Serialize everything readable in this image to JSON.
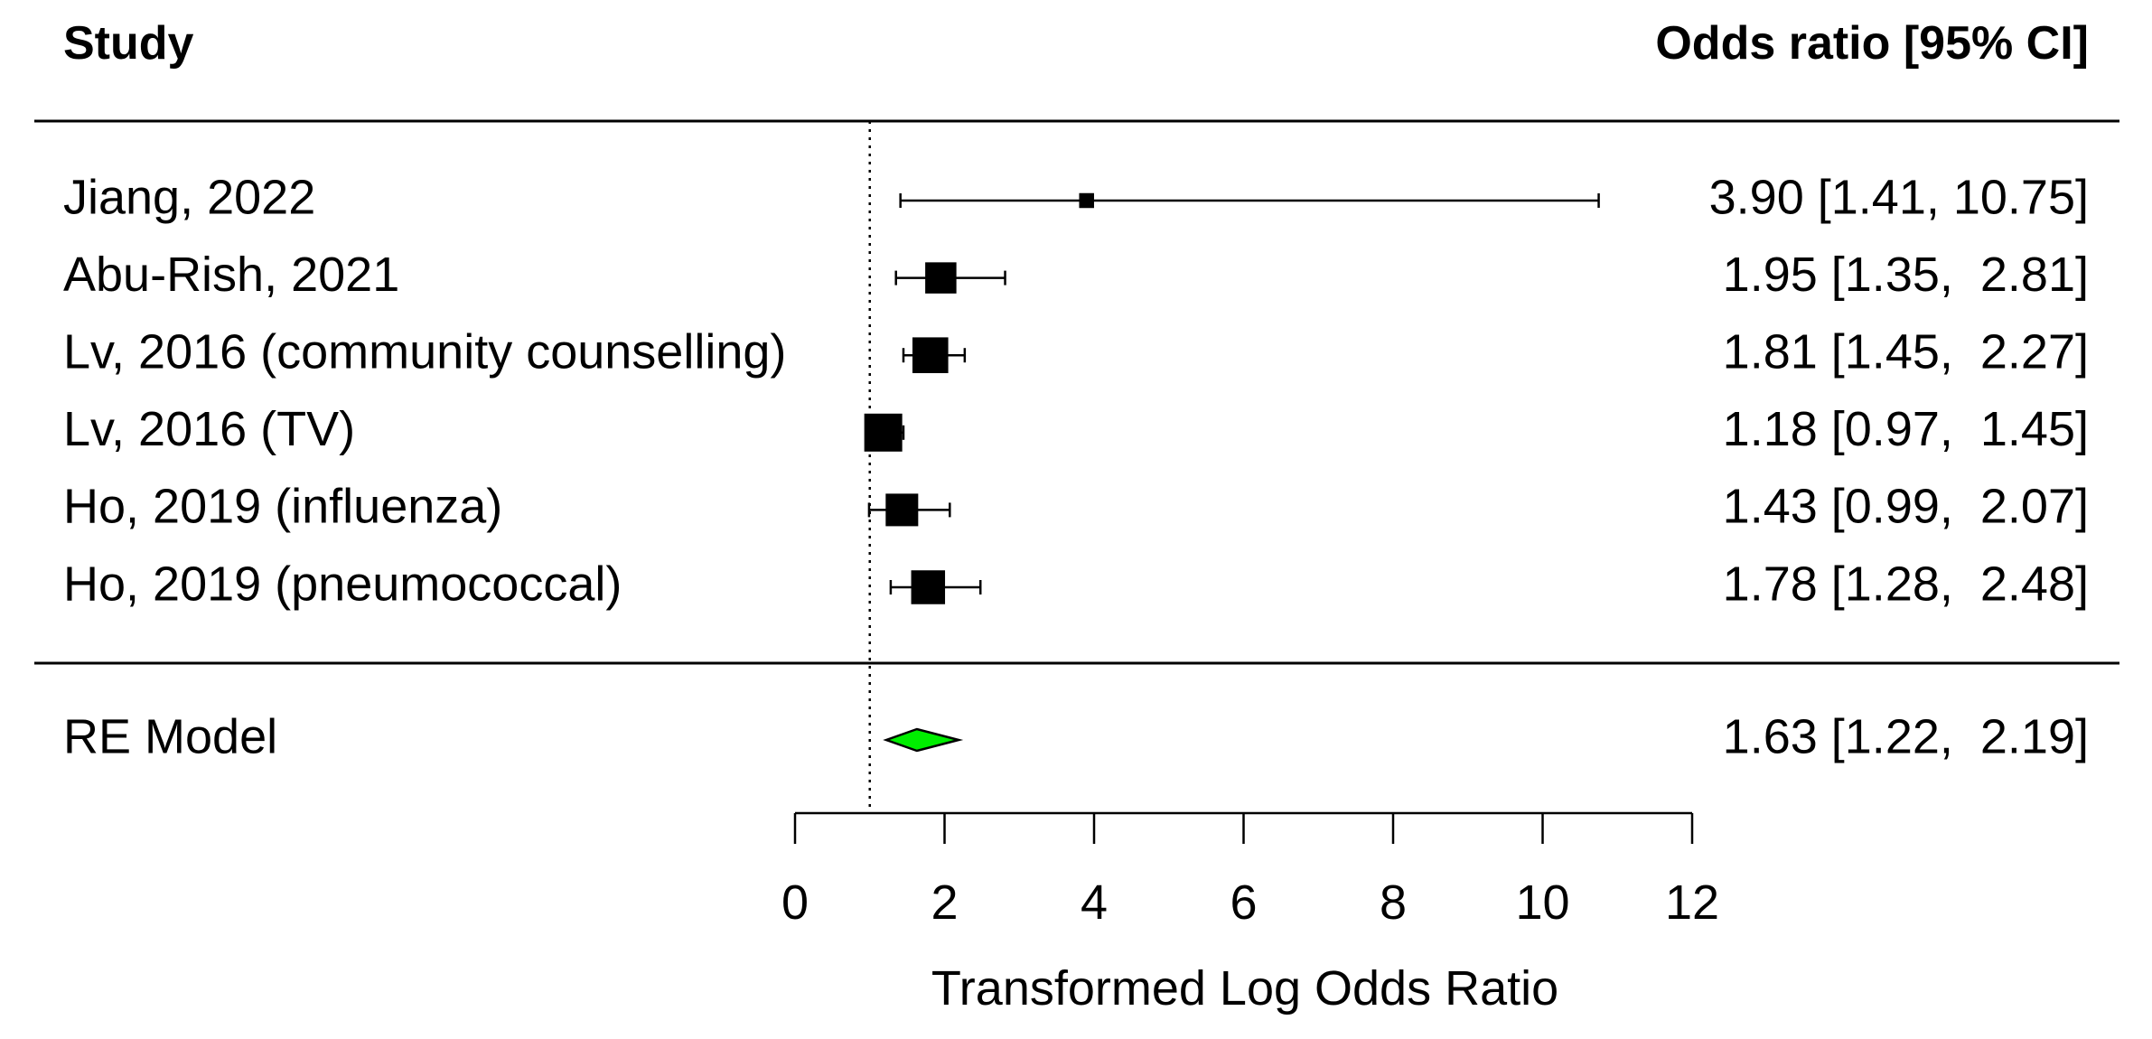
{
  "chart_data": {
    "type": "forest",
    "header_left": "Study",
    "header_right": "Odds ratio [95% CI]",
    "xlabel": "Transformed Log Odds Ratio",
    "xlim": [
      0,
      12
    ],
    "xticks": [
      0,
      2,
      4,
      6,
      8,
      10,
      12
    ],
    "reference_line": 1,
    "studies": [
      {
        "label": "Jiang, 2022",
        "est": 3.9,
        "lo": 1.41,
        "hi": 10.75,
        "ci_text": "3.90 [1.41, 10.75]",
        "weight": 0.15
      },
      {
        "label": "Abu-Rish, 2021",
        "est": 1.95,
        "lo": 1.35,
        "hi": 2.81,
        "ci_text": "1.95 [1.35,  2.81]",
        "weight": 0.75
      },
      {
        "label": "Lv, 2016 (community counselling)",
        "est": 1.81,
        "lo": 1.45,
        "hi": 2.27,
        "ci_text": "1.81 [1.45,  2.27]",
        "weight": 0.92
      },
      {
        "label": "Lv, 2016 (TV)",
        "est": 1.18,
        "lo": 0.97,
        "hi": 1.45,
        "ci_text": "1.18 [0.97,  1.45]",
        "weight": 1.0
      },
      {
        "label": "Ho, 2019 (influenza)",
        "est": 1.43,
        "lo": 0.99,
        "hi": 2.07,
        "ci_text": "1.43 [0.99,  2.07]",
        "weight": 0.8
      },
      {
        "label": "Ho, 2019 (pneumococcal)",
        "est": 1.78,
        "lo": 1.28,
        "hi": 2.48,
        "ci_text": "1.78 [1.28,  2.48]",
        "weight": 0.85
      }
    ],
    "summary": {
      "label": "RE Model",
      "est": 1.63,
      "lo": 1.22,
      "hi": 2.19,
      "ci_text": "1.63 [1.22,  2.19]",
      "color": "#00ee00"
    }
  }
}
